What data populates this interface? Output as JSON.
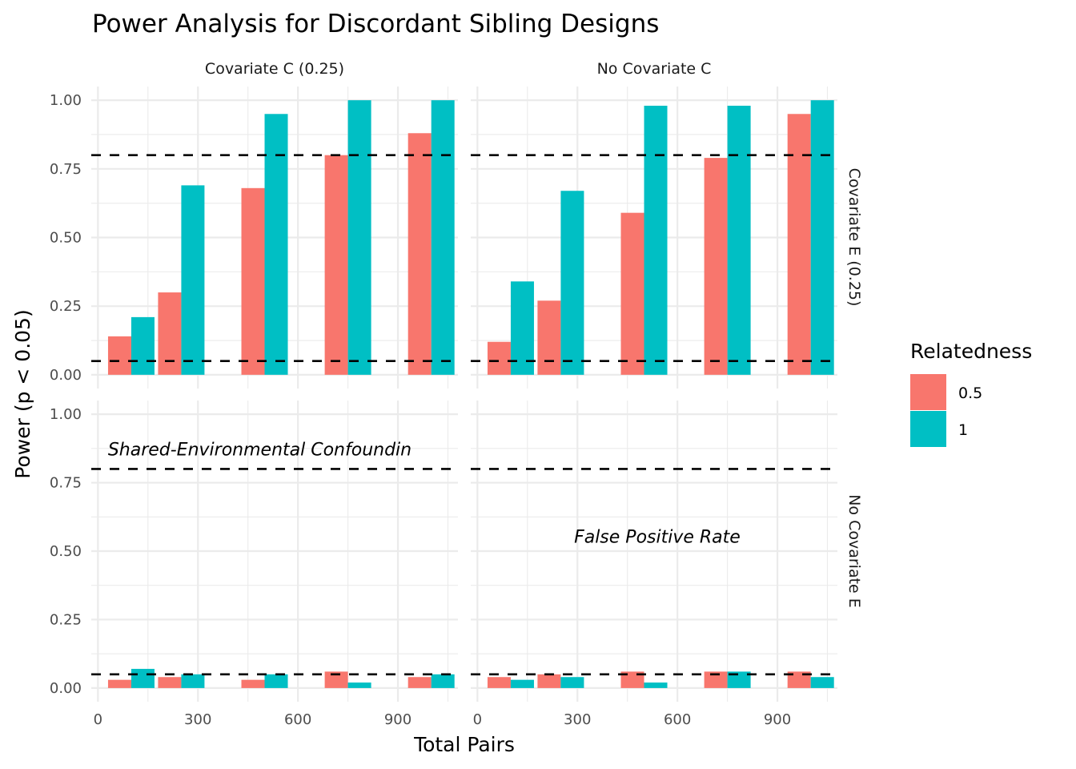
{
  "chart_data": {
    "type": "bar",
    "title": "Power Analysis for Discordant Sibling Designs",
    "xlabel": "Total Pairs",
    "ylabel": "Power (p < 0.05)",
    "x": [
      100,
      250,
      500,
      750,
      1000
    ],
    "xlim": [
      -20,
      1080
    ],
    "ylim": [
      -0.05,
      1.05
    ],
    "x_ticks": [
      0,
      300,
      600,
      900
    ],
    "x_tick_labels": [
      "0",
      "300",
      "600",
      "900"
    ],
    "y_ticks": [
      0,
      0.25,
      0.5,
      0.75,
      1.0
    ],
    "y_tick_labels": [
      "0.00",
      "0.25",
      "0.50",
      "0.75",
      "1.00"
    ],
    "grid": true,
    "reference_lines": [
      0.8,
      0.05
    ],
    "legend": {
      "title": "Relatedness",
      "position": "right",
      "entries": [
        {
          "label": "0.5",
          "color": "#F8766D"
        },
        {
          "label": "1",
          "color": "#00BFC4"
        }
      ]
    },
    "facet_columns": [
      "Covariate C (0.25)",
      "No Covariate C"
    ],
    "facet_rows": [
      "Covariate E (0.25)",
      "No Covariate E"
    ],
    "panels": [
      {
        "col": "Covariate C (0.25)",
        "row": "Covariate E (0.25)",
        "annotation": "",
        "series": [
          {
            "name": "0.5",
            "values": [
              0.14,
              0.3,
              0.68,
              0.8,
              0.88
            ]
          },
          {
            "name": "1",
            "values": [
              0.21,
              0.69,
              0.95,
              1.0,
              1.0
            ]
          }
        ]
      },
      {
        "col": "No Covariate C",
        "row": "Covariate E (0.25)",
        "annotation": "",
        "series": [
          {
            "name": "0.5",
            "values": [
              0.12,
              0.27,
              0.59,
              0.79,
              0.95
            ]
          },
          {
            "name": "1",
            "values": [
              0.34,
              0.67,
              0.98,
              0.98,
              1.0
            ]
          }
        ]
      },
      {
        "col": "Covariate C (0.25)",
        "row": "No Covariate E",
        "annotation": "Shared-Environmental Confoundin",
        "annotation_pos": {
          "x": 30,
          "y": 0.85
        },
        "series": [
          {
            "name": "0.5",
            "values": [
              0.03,
              0.04,
              0.03,
              0.06,
              0.04
            ]
          },
          {
            "name": "1",
            "values": [
              0.07,
              0.05,
              0.05,
              0.02,
              0.05
            ]
          }
        ]
      },
      {
        "col": "No Covariate C",
        "row": "No Covariate E",
        "annotation": "False Positive Rate",
        "annotation_pos": {
          "x": 290,
          "y": 0.53
        },
        "series": [
          {
            "name": "0.5",
            "values": [
              0.04,
              0.05,
              0.06,
              0.06,
              0.06
            ]
          },
          {
            "name": "1",
            "values": [
              0.03,
              0.04,
              0.02,
              0.06,
              0.04
            ]
          }
        ]
      }
    ]
  }
}
